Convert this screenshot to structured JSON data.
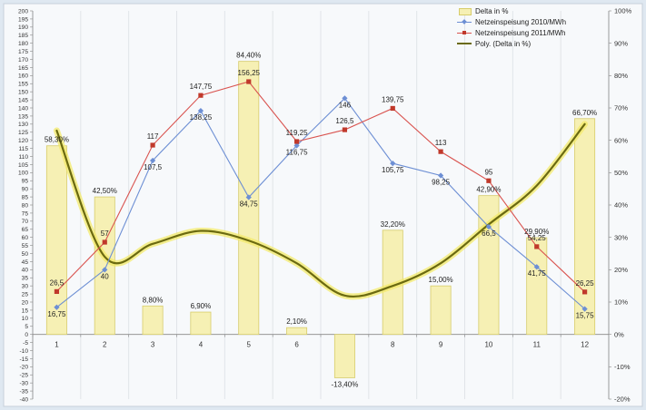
{
  "chart_data": {
    "type": "bar",
    "categories": [
      "1",
      "2",
      "3",
      "4",
      "5",
      "6",
      "7",
      "8",
      "9",
      "10",
      "11",
      "12"
    ],
    "delta_percent": [
      58.3,
      42.5,
      8.8,
      6.9,
      84.4,
      2.1,
      -13.4,
      32.2,
      15.0,
      42.9,
      29.9,
      66.7
    ],
    "delta_labels": [
      "58,30%",
      "42,50%",
      "8,80%",
      "6,90%",
      "84,40%",
      "2,10%",
      "-13,40%",
      "32,20%",
      "15,00%",
      "42,90%",
      "29,90%",
      "66,70%"
    ],
    "series": [
      {
        "name": "Netzeinspeisung 2010/MWh",
        "type": "line",
        "color": "#6d8fd4",
        "values": [
          16.75,
          40,
          107.5,
          138.25,
          84.75,
          116.75,
          146,
          105.75,
          98.25,
          66.5,
          41.75,
          15.75
        ],
        "labels": [
          "16,75",
          "40",
          "107,5",
          "138,25",
          "84,75",
          "116,75",
          "146",
          "105,75",
          "98,25",
          "66,5",
          "41,75",
          "15,75"
        ]
      },
      {
        "name": "Netzeinspeisung 2011/MWh",
        "type": "line",
        "color": "#d9534f",
        "values": [
          26.5,
          57,
          117,
          147.75,
          156.25,
          119.25,
          126.5,
          139.75,
          113,
          95,
          54.25,
          26.25
        ],
        "labels": [
          "26,5",
          "57",
          "117",
          "147,75",
          "156,25",
          "119,25",
          "126,5",
          "139,75",
          "113",
          "95",
          "54,25",
          "26,25"
        ]
      }
    ],
    "trendline": {
      "name": "Poly. (Delta in %)",
      "type": "polynomial",
      "approx_percent": [
        63,
        24,
        28,
        32,
        29,
        22,
        12,
        15,
        22,
        34,
        46,
        65
      ]
    },
    "bar_series_name": "Delta in %",
    "bar_color": "#f6f0b4",
    "bar_border": "#d7cc6b",
    "trend_color": "#6b6a10",
    "ylim": [
      -40,
      200
    ],
    "y_step": 5,
    "y2lim": [
      -20,
      100
    ],
    "y2_step": 10,
    "grid": true,
    "legend_position": "top-right"
  }
}
